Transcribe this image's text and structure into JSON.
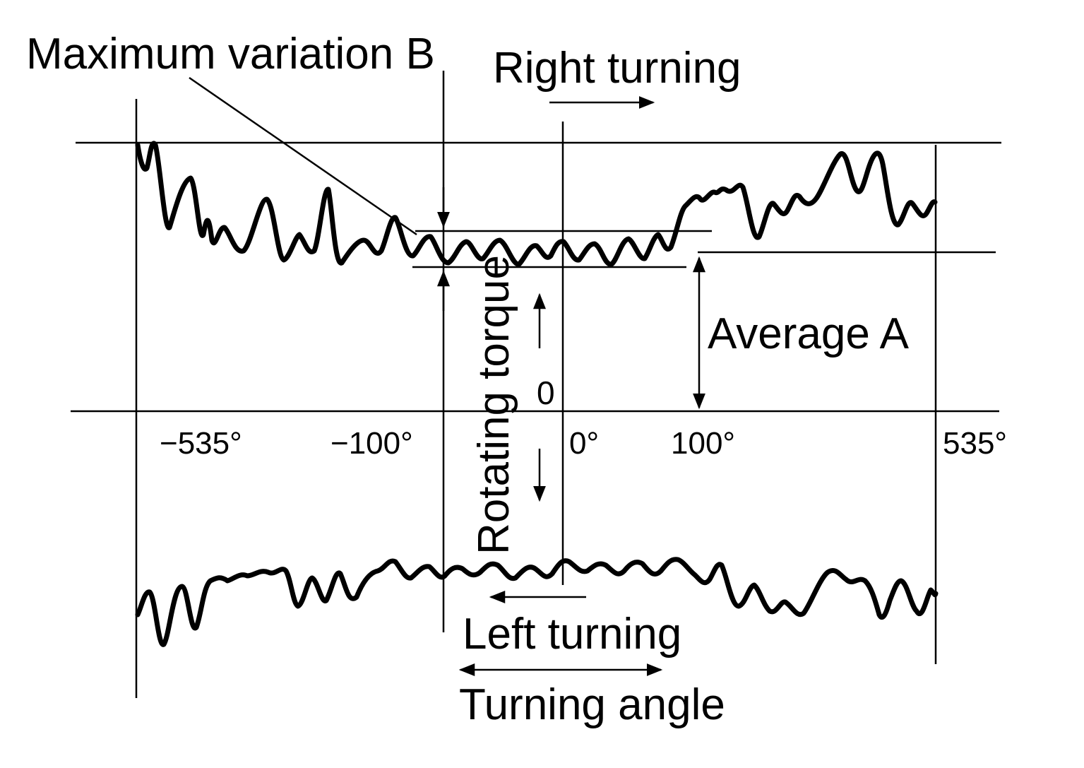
{
  "labels": {
    "max_variation": "Maximum variation B",
    "right_turning": "Right turning",
    "left_turning": "Left turning",
    "turning_angle": "Turning angle",
    "average": "Average A",
    "rotating_torque": "Rotating torque",
    "zero": "0"
  },
  "ticks": {
    "neg535": "−535°",
    "neg100": "−100°",
    "zero": "0°",
    "pos100": "100°",
    "pos535": "535°"
  },
  "colors": {
    "ink": "#000000",
    "paper": "#ffffff"
  }
}
